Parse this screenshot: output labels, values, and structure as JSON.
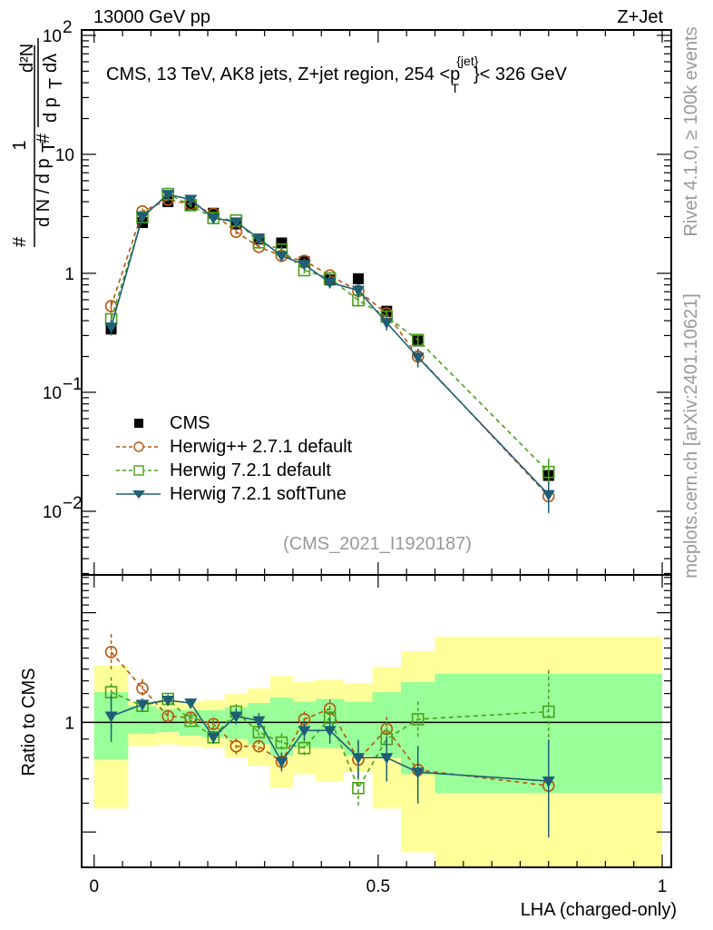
{
  "header": {
    "energy": "13000 GeV pp",
    "process": "Z+Jet"
  },
  "side_labels": {
    "rivet": "Rivet 4.1.0, ≥ 100k events",
    "mcplots": "mcplots.cern.ch [arXiv:2401.10621]"
  },
  "analysis_id": "(CMS_2021_I1920187)",
  "colors": {
    "data": "#000000",
    "herwigpp": "#b5570f",
    "herwig721": "#4aa01c",
    "softtune": "#1f5f74",
    "band_total": "#ffff99",
    "band_stat": "#99ff99"
  },
  "chart_data": {
    "type": "scatter",
    "title_parts": {
      "main": "CMS, 13 TeV, AK8 jets, Z+jet region, 254 <p",
      "sup": "{jet}",
      "sub": "T",
      "tail": "}< 326 GeV"
    },
    "ylabel_parts": {
      "num": "1",
      "den_a": "d N / d p",
      "den_sub": "T",
      "hash1": "#",
      "hash2": "#",
      "d2n": "d²N",
      "dpt": "d p",
      "dpt_sub": "T",
      "dlam": "dλ"
    },
    "xlabel": "LHA (charged-only)",
    "ratio_ylabel": "Ratio to CMS",
    "xlim": [
      -0.022,
      1.016
    ],
    "ylim": [
      0.00292,
      111
    ],
    "yscale": "log",
    "ratio_ylim": [
      0.4,
      2.54
    ],
    "ratio_yscale": "log",
    "x_ticks": [
      {
        "v": 0,
        "label": "0"
      },
      {
        "v": 0.5,
        "label": "0.5"
      },
      {
        "v": 1,
        "label": "1"
      }
    ],
    "y_ticks": [
      {
        "v": 100,
        "base": "10",
        "exp": "2"
      },
      {
        "v": 10,
        "base": "10",
        "exp": ""
      },
      {
        "v": 1,
        "base": "1",
        "exp": ""
      },
      {
        "v": 0.1,
        "base": "10",
        "exp": "−1"
      },
      {
        "v": 0.01,
        "base": "10",
        "exp": "−2"
      }
    ],
    "ratio_y_ticks": [
      {
        "v": 1,
        "label": "1"
      }
    ],
    "bin_edges": [
      0,
      0.06,
      0.11,
      0.15,
      0.19,
      0.23,
      0.27,
      0.31,
      0.35,
      0.39,
      0.44,
      0.49,
      0.54,
      0.6,
      1.0
    ],
    "data": {
      "name": "CMS",
      "y": [
        0.34,
        2.67,
        4.0,
        3.7,
        3.2,
        2.6,
        1.94,
        1.8,
        1.25,
        0.88,
        0.9,
        0.48,
        0.27,
        0.02
      ]
    },
    "bands": {
      "total_lo": [
        0.58,
        0.86,
        0.87,
        0.86,
        0.85,
        0.8,
        0.76,
        0.66,
        0.72,
        0.69,
        0.73,
        0.58,
        0.44,
        0.38
      ],
      "total_hi": [
        1.43,
        1.14,
        1.15,
        1.14,
        1.15,
        1.2,
        1.24,
        1.34,
        1.29,
        1.31,
        1.28,
        1.42,
        1.57,
        1.72
      ],
      "stat_lo": [
        0.79,
        0.93,
        0.94,
        0.92,
        0.91,
        0.9,
        0.87,
        0.81,
        0.85,
        0.85,
        0.81,
        0.8,
        0.72,
        0.64
      ],
      "stat_hi": [
        1.21,
        1.11,
        1.09,
        1.08,
        1.08,
        1.1,
        1.13,
        1.17,
        1.14,
        1.16,
        1.14,
        1.21,
        1.29,
        1.36
      ]
    },
    "series": [
      {
        "name": "Herwig++ 2.7.1 default",
        "key": "herwigpp",
        "marker": "circle",
        "dash": true,
        "ratio": [
          1.56,
          1.24,
          1.04,
          1.03,
          0.99,
          0.86,
          0.86,
          0.78,
          1.02,
          1.09,
          0.79,
          0.96,
          0.74,
          0.67
        ],
        "rel_err": [
          0.12,
          0.06,
          0.03,
          0.03,
          0.03,
          0.05,
          0.04,
          0.06,
          0.05,
          0.06,
          0.12,
          0.08,
          0.15,
          0.25
        ]
      },
      {
        "name": "Herwig 7.2.1 default",
        "key": "herwig721",
        "marker": "square",
        "dash": true,
        "ratio": [
          1.21,
          1.11,
          1.16,
          1.01,
          0.91,
          1.07,
          0.94,
          0.88,
          0.85,
          1.03,
          0.66,
          0.9,
          1.02,
          1.07
        ],
        "rel_err": [
          0.1,
          0.04,
          0.03,
          0.04,
          0.04,
          0.05,
          0.04,
          0.06,
          0.06,
          0.07,
          0.12,
          0.12,
          0.12,
          0.3
        ]
      },
      {
        "name": "Herwig 7.2.1 softTune",
        "key": "softtune",
        "marker": "triangle-down",
        "dash": false,
        "ratio": [
          1.04,
          1.12,
          1.15,
          1.13,
          0.91,
          1.04,
          1.01,
          0.78,
          0.95,
          0.95,
          0.8,
          0.8,
          0.73,
          0.69
        ],
        "rel_err": [
          0.15,
          0.04,
          0.03,
          0.03,
          0.04,
          0.05,
          0.05,
          0.06,
          0.06,
          0.08,
          0.12,
          0.14,
          0.18,
          0.3
        ]
      }
    ],
    "legend_position": "lower-left",
    "legend": [
      "CMS",
      "Herwig++ 2.7.1 default",
      "Herwig 7.2.1 default",
      "Herwig 7.2.1 softTune"
    ]
  }
}
